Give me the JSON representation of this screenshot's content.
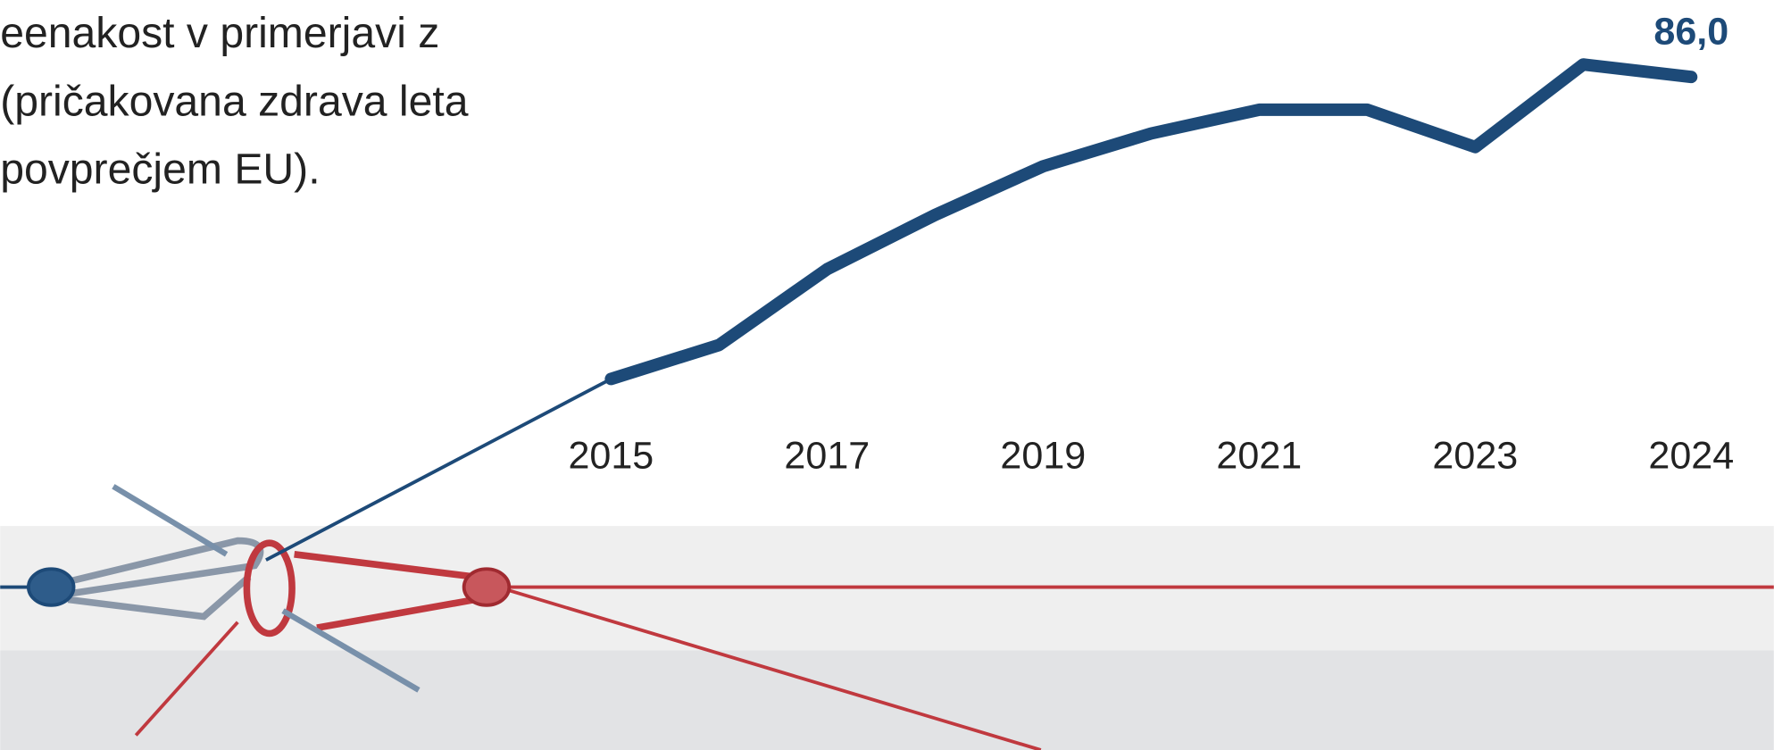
{
  "chart_data": {
    "type": "line",
    "title_lines": [
      "eenakost v primerjavi z",
      "(pričakovana zdrava leta",
      "povprečjem EU)."
    ],
    "categories": [
      "2015",
      null,
      "2017",
      null,
      "2019",
      null,
      "2021",
      null,
      "2023",
      null,
      "2024"
    ],
    "series": [
      {
        "color": "#1d4a78",
        "values": [
          59.3,
          62.3,
          69.0,
          73.8,
          78.1,
          81.0,
          83.1,
          83.1,
          79.8,
          87.1,
          86.0
        ],
        "value_labels": [
          null,
          null,
          null,
          null,
          null,
          null,
          null,
          null,
          null,
          null,
          "86,0"
        ]
      }
    ],
    "ylim": [
      50,
      90
    ]
  }
}
